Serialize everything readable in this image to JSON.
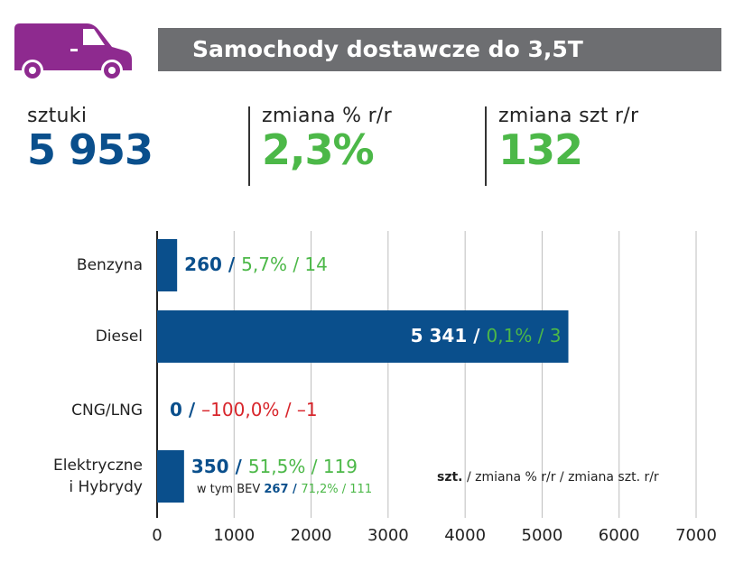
{
  "header": {
    "title": "Samochody dostawcze do 3,5T",
    "icon": "delivery-van-icon",
    "icon_color": "#8e2a8f"
  },
  "stats": {
    "units_label": "sztuki",
    "units_value": "5 953",
    "pct_change_label": "zmiana % r/r",
    "pct_change_value": "2,3%",
    "abs_change_label": "zmiana szt r/r",
    "abs_change_value": "132"
  },
  "colors": {
    "bar": "#0a4f8c",
    "grid": "#bdbdbd",
    "positive": "#4cb848",
    "negative": "#d8262c",
    "title_bg": "#6d6e71"
  },
  "chart_data": {
    "type": "bar",
    "orientation": "horizontal",
    "categories": [
      "Benzyna",
      "Diesel",
      "CNG/LNG",
      "Elektryczne i Hybrydy"
    ],
    "category_lines": [
      [
        "Benzyna"
      ],
      [
        "Diesel"
      ],
      [
        "CNG/LNG"
      ],
      [
        "Elektryczne",
        "i Hybrydy"
      ]
    ],
    "values": [
      260,
      5341,
      0,
      350
    ],
    "value_labels": [
      "260",
      "5 341",
      "0",
      "350"
    ],
    "pct_changes": [
      "5,7%",
      "0,1%",
      "–100,0%",
      "51,5%"
    ],
    "abs_changes": [
      "14",
      "3",
      "–1",
      "119"
    ],
    "label_inside": [
      false,
      true,
      false,
      false
    ],
    "negative": [
      false,
      false,
      true,
      false
    ],
    "bev": {
      "prefix": "w tym BEV",
      "units": "267",
      "pct": "71,2%",
      "abs": "111"
    },
    "legend": {
      "units": "szt.",
      "rest": "/ zmiana % r/r / zmiana szt. r/r"
    },
    "xlim": [
      0,
      7000
    ],
    "xticks": [
      0,
      1000,
      2000,
      3000,
      4000,
      5000,
      6000,
      7000
    ],
    "grid": true
  }
}
